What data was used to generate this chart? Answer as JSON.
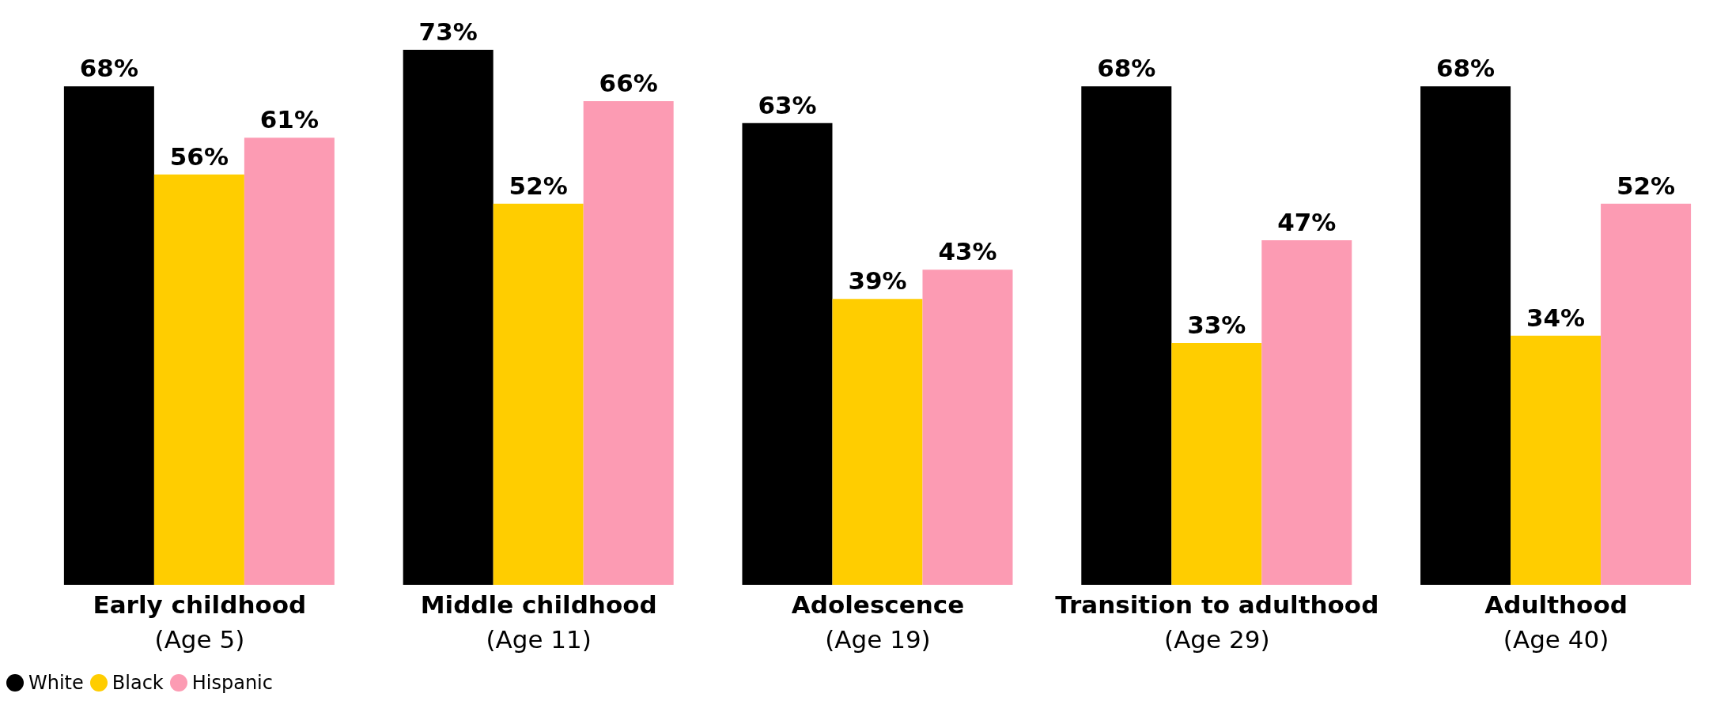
{
  "chart_data": {
    "type": "bar",
    "categories": [
      "Early childhood\n(Age 5)",
      "Middle childhood\n(Age 11)",
      "Adolescence\n(Age 19)",
      "Transition to adulthood\n(Age 29)",
      "Adulthood\n(Age 40)"
    ],
    "series": [
      {
        "name": "White",
        "color": "#000000",
        "values": [
          68,
          73,
          63,
          68,
          68
        ],
        "value_labels": [
          "68%",
          "73%",
          "63%",
          "68%",
          "68%"
        ]
      },
      {
        "name": "Black",
        "color": "#ffcd00",
        "values": [
          56,
          52,
          39,
          33,
          34
        ],
        "value_labels": [
          "56%",
          "52%",
          "39%",
          "33%",
          "34%"
        ]
      },
      {
        "name": "Hispanic",
        "color": "#fc9bb3",
        "values": [
          61,
          66,
          43,
          47,
          52
        ],
        "value_labels": [
          "61%",
          "66%",
          "43%",
          "47%",
          "52%"
        ]
      }
    ],
    "legend": "bottom left",
    "grid": false
  }
}
